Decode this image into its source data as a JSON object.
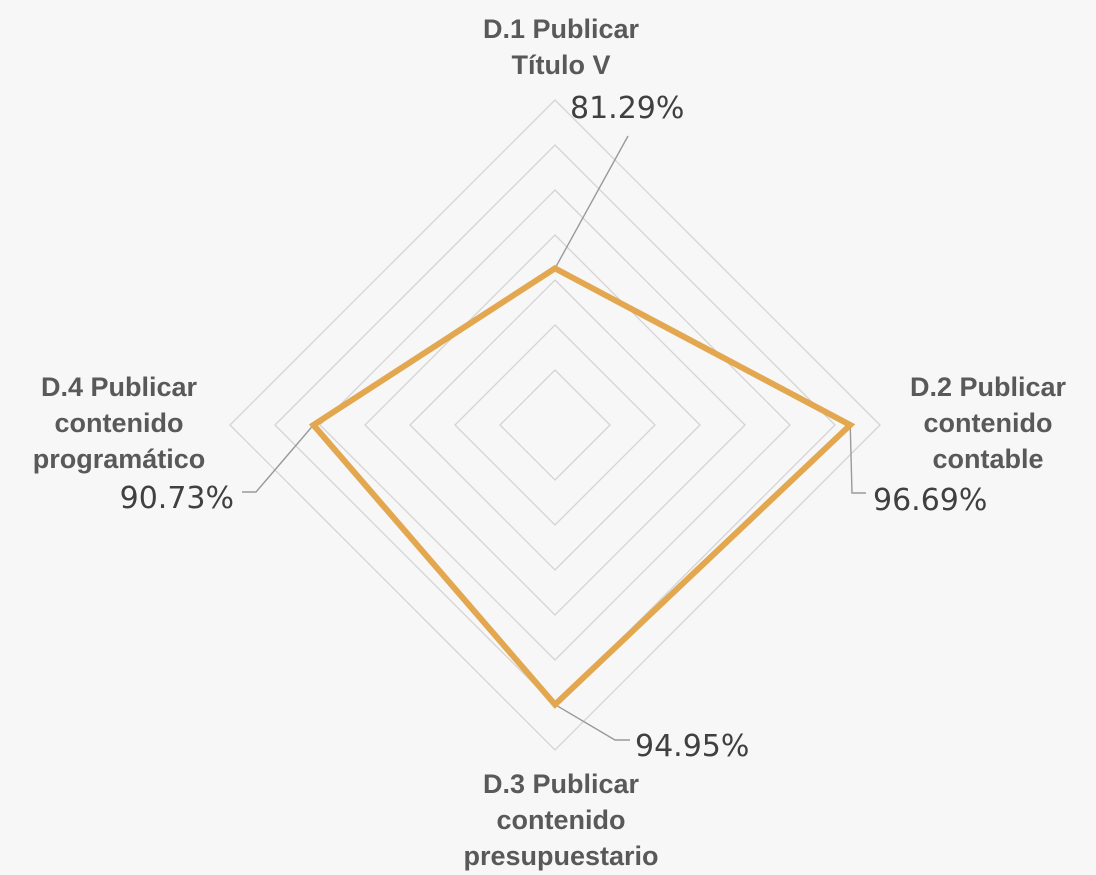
{
  "chart_data": {
    "type": "radar",
    "categories": [
      "D.1 Publicar Título V",
      "D.2 Publicar contenido contable",
      "D.3 Publicar contenido presupuestario",
      "D.4 Publicar contenido programático"
    ],
    "category_lines": [
      [
        "D.1 Publicar",
        "Título V"
      ],
      [
        "D.2 Publicar",
        "contenido",
        "contable"
      ],
      [
        "D.3 Publicar",
        "contenido",
        "presupuestario"
      ],
      [
        "D.4 Publicar",
        "contenido",
        "programático"
      ]
    ],
    "series": [
      {
        "values": [
          81.29,
          96.69,
          94.95,
          90.73
        ],
        "color": "#e3a74f"
      }
    ],
    "data_labels": [
      "81.29%",
      "96.69%",
      "94.95%",
      "90.73%"
    ],
    "rlim": [
      70,
      100
    ],
    "grid_step": 5,
    "grid": true,
    "legend": false,
    "background": "#f7f7f7",
    "grid_color": "#d4d4d4"
  }
}
